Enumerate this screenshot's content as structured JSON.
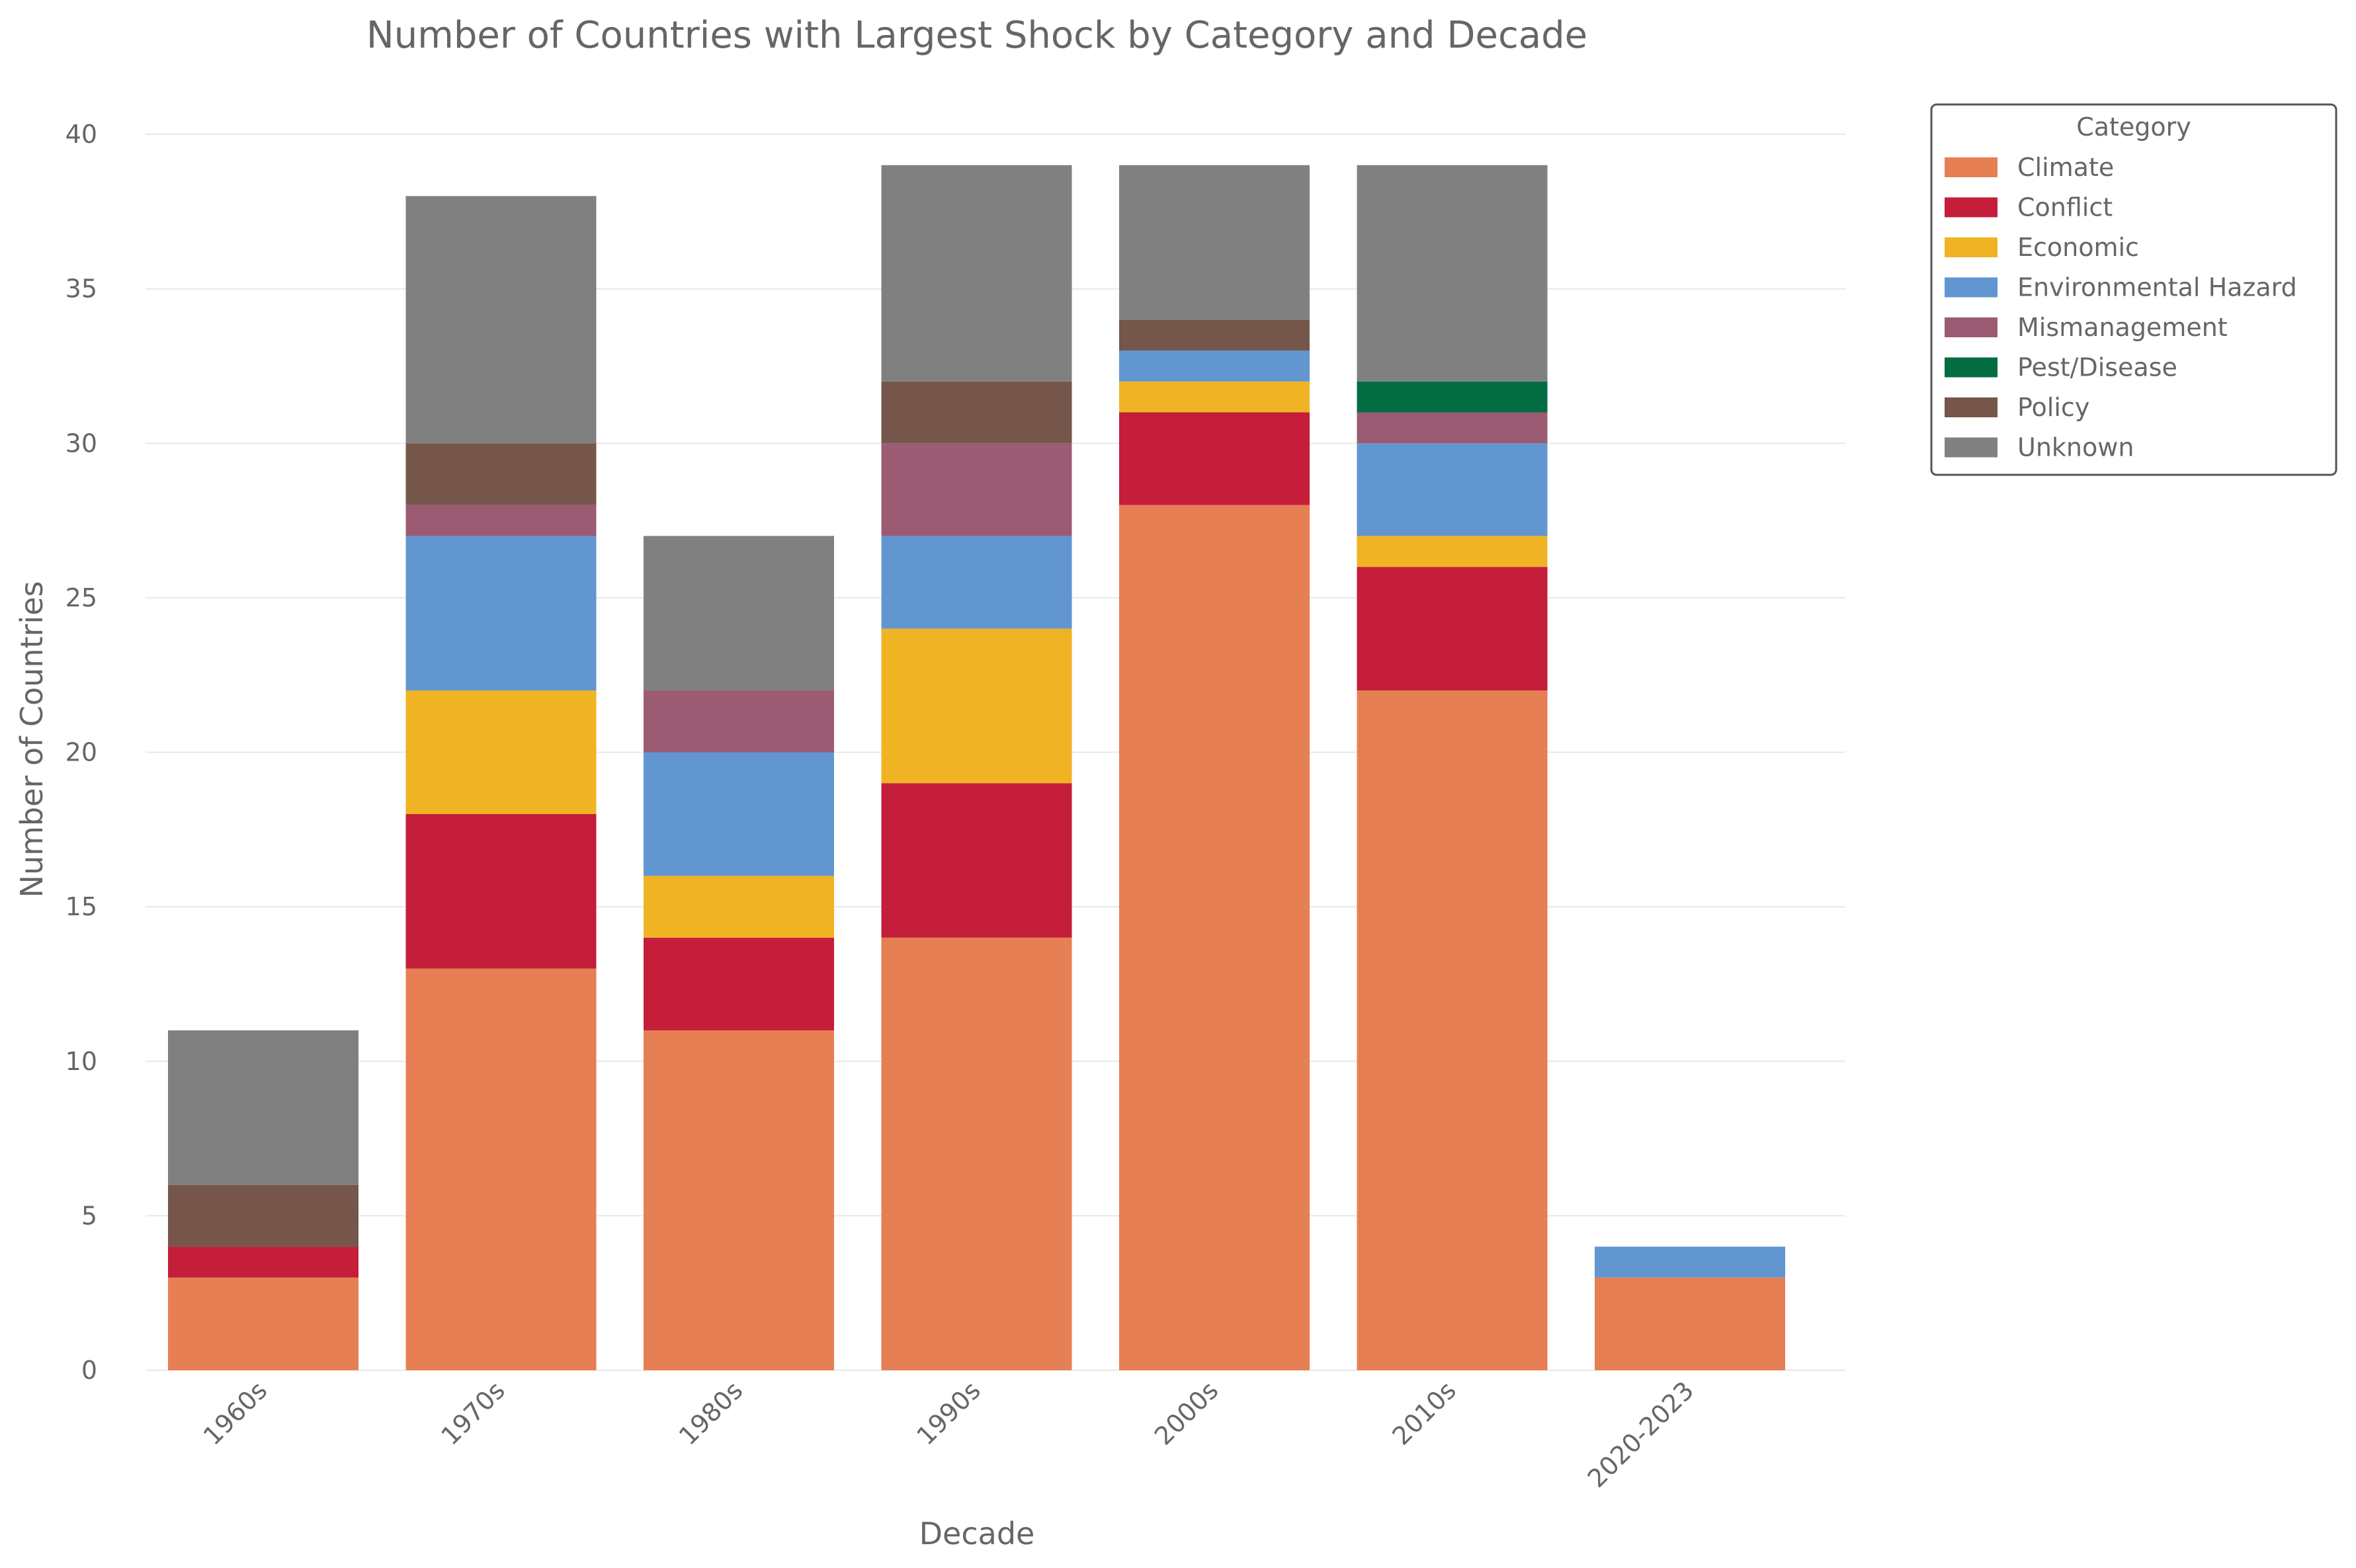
{
  "chart_data": {
    "type": "bar",
    "stacked": true,
    "title": "Number of Countries with Largest Shock by Category and Decade",
    "xlabel": "Decade",
    "ylabel": "Number of Countries",
    "ylim": [
      0,
      40
    ],
    "yticks": [
      0,
      5,
      10,
      15,
      20,
      25,
      30,
      35,
      40
    ],
    "grid": "horizontal",
    "legend": {
      "title": "Category",
      "placement": "right-top"
    },
    "categories": [
      "1960s",
      "1970s",
      "1980s",
      "1990s",
      "2000s",
      "2010s",
      "2020-2023"
    ],
    "series": [
      {
        "name": "Climate",
        "color": "#E67F54",
        "values": [
          3,
          13,
          11,
          14,
          28,
          22,
          3
        ]
      },
      {
        "name": "Conflict",
        "color": "#C41E3A",
        "values": [
          1,
          5,
          3,
          5,
          3,
          4,
          0
        ]
      },
      {
        "name": "Economic",
        "color": "#F0B323",
        "values": [
          0,
          4,
          2,
          5,
          1,
          1,
          0
        ]
      },
      {
        "name": "Environmental Hazard",
        "color": "#6196D0",
        "values": [
          0,
          5,
          4,
          3,
          1,
          3,
          1
        ]
      },
      {
        "name": "Mismanagement",
        "color": "#9B5B73",
        "values": [
          0,
          1,
          2,
          3,
          0,
          1,
          0
        ]
      },
      {
        "name": "Pest/Disease",
        "color": "#036D41",
        "values": [
          0,
          0,
          0,
          0,
          0,
          1,
          0
        ]
      },
      {
        "name": "Policy",
        "color": "#76564A",
        "values": [
          2,
          2,
          0,
          2,
          1,
          0,
          0
        ]
      },
      {
        "name": "Unknown",
        "color": "#808080",
        "values": [
          5,
          8,
          5,
          7,
          5,
          7,
          0
        ]
      }
    ]
  }
}
